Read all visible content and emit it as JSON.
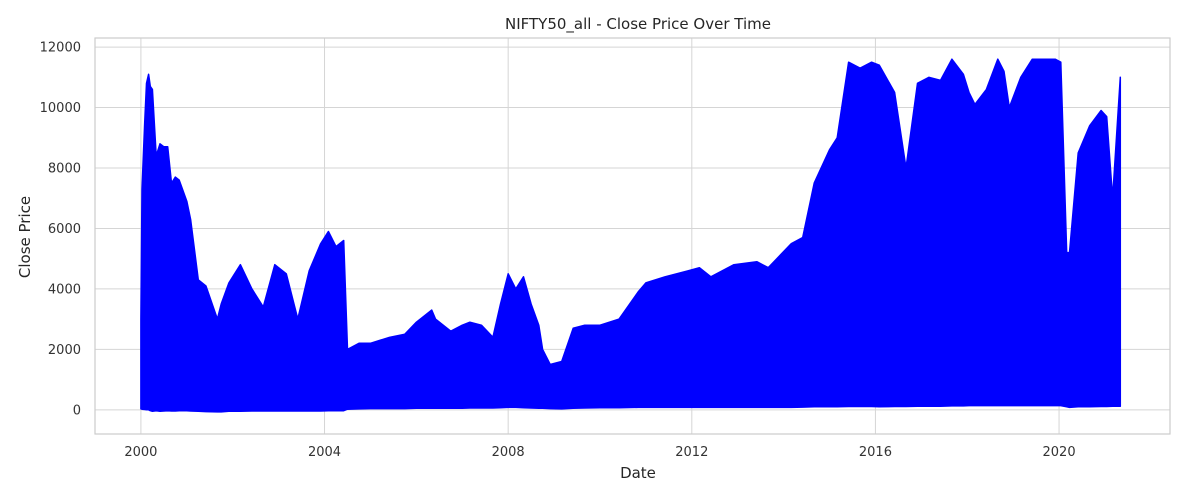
{
  "chart_data": {
    "type": "area",
    "title": "NIFTY50_all - Close Price Over Time",
    "xlabel": "Date",
    "ylabel": "Close Price",
    "xlim": [
      "1999-01-01",
      "2022-06-01"
    ],
    "ylim": [
      -800,
      12300
    ],
    "grid": true,
    "x_ticks": [
      "2000",
      "2004",
      "2008",
      "2012",
      "2016",
      "2020"
    ],
    "y_ticks": [
      0,
      2000,
      4000,
      6000,
      8000,
      10000,
      12000
    ],
    "series": [
      {
        "color": "#0000ff",
        "x": [
          "2000-01-01",
          "2000-01-10",
          "2000-02-01",
          "2000-02-15",
          "2000-03-01",
          "2000-03-15",
          "2000-04-01",
          "2000-05-01",
          "2000-06-01",
          "2000-07-01",
          "2000-08-01",
          "2000-09-01",
          "2000-10-01",
          "2000-11-01",
          "2001-01-01",
          "2001-02-01",
          "2001-04-01",
          "2001-06-01",
          "2001-09-01",
          "2001-10-01",
          "2001-12-01",
          "2002-03-01",
          "2002-06-01",
          "2002-09-01",
          "2002-12-01",
          "2003-03-01",
          "2003-06-01",
          "2003-09-01",
          "2003-12-01",
          "2004-02-01",
          "2004-04-01",
          "2004-06-01",
          "2004-07-01",
          "2004-10-01",
          "2005-01-01",
          "2005-06-01",
          "2005-10-01",
          "2006-01-01",
          "2006-05-01",
          "2006-06-01",
          "2006-10-01",
          "2007-01-01",
          "2007-03-01",
          "2007-06-01",
          "2007-09-01",
          "2007-11-01",
          "2008-01-01",
          "2008-03-01",
          "2008-05-01",
          "2008-07-01",
          "2008-09-01",
          "2008-10-01",
          "2008-12-01",
          "2009-03-01",
          "2009-06-01",
          "2009-09-01",
          "2010-01-01",
          "2010-06-01",
          "2010-11-01",
          "2011-01-01",
          "2011-06-01",
          "2011-12-01",
          "2012-03-01",
          "2012-06-01",
          "2012-12-01",
          "2013-06-01",
          "2013-09-01",
          "2013-12-01",
          "2014-03-01",
          "2014-06-01",
          "2014-09-01",
          "2015-01-01",
          "2015-03-01",
          "2015-06-01",
          "2015-09-01",
          "2015-12-01",
          "2016-02-01",
          "2016-06-01",
          "2016-09-01",
          "2016-12-01",
          "2017-03-01",
          "2017-06-01",
          "2017-09-01",
          "2017-12-01",
          "2018-01-15",
          "2018-03-01",
          "2018-06-01",
          "2018-09-01",
          "2018-10-20",
          "2018-12-01",
          "2019-03-01",
          "2019-06-01",
          "2019-09-01",
          "2019-12-01",
          "2020-01-15",
          "2020-03-01",
          "2020-03-24",
          "2020-06-01",
          "2020-09-01",
          "2020-12-01",
          "2021-01-15",
          "2021-03-01",
          "2021-05-01"
        ],
        "high": [
          3000,
          7300,
          9500,
          10800,
          11100,
          10700,
          10600,
          8400,
          8800,
          8700,
          8700,
          7500,
          7700,
          7600,
          6900,
          6300,
          4300,
          4100,
          3000,
          3500,
          4200,
          4800,
          4000,
          3400,
          4800,
          4500,
          3000,
          4600,
          5500,
          5900,
          5400,
          5600,
          2000,
          2200,
          2200,
          2400,
          2500,
          2900,
          3300,
          3000,
          2600,
          2800,
          2900,
          2800,
          2400,
          3500,
          4500,
          4000,
          4400,
          3500,
          2800,
          2000,
          1500,
          1600,
          2700,
          2800,
          2800,
          3000,
          3900,
          4200,
          4400,
          4600,
          4700,
          4400,
          4800,
          4900,
          4700,
          5100,
          5500,
          5700,
          7500,
          8600,
          9000,
          11500,
          11300,
          11500,
          11400,
          10500,
          8000,
          10800,
          11000,
          10900,
          11600,
          11100,
          10500,
          10100,
          10600,
          11600,
          11200,
          10000,
          11000,
          11600,
          11600,
          11600,
          11500,
          5200,
          5200,
          8500,
          9400,
          9900,
          9700,
          7000,
          11000
        ],
        "low": [
          30,
          20,
          10,
          0,
          0,
          -30,
          -50,
          -30,
          -50,
          -40,
          -30,
          -40,
          -40,
          -30,
          -30,
          -40,
          -50,
          -60,
          -70,
          -70,
          -50,
          -50,
          -40,
          -40,
          -40,
          -40,
          -40,
          -40,
          -40,
          -30,
          -30,
          -30,
          20,
          30,
          40,
          40,
          40,
          50,
          50,
          50,
          50,
          50,
          60,
          60,
          60,
          70,
          80,
          80,
          70,
          60,
          50,
          50,
          40,
          30,
          50,
          60,
          70,
          70,
          80,
          80,
          80,
          80,
          80,
          80,
          80,
          80,
          80,
          80,
          80,
          90,
          100,
          100,
          100,
          110,
          110,
          110,
          100,
          110,
          110,
          120,
          120,
          120,
          130,
          130,
          140,
          140,
          140,
          140,
          140,
          140,
          140,
          140,
          140,
          140,
          140,
          100,
          80,
          100,
          100,
          110,
          110,
          120,
          120
        ]
      }
    ]
  }
}
